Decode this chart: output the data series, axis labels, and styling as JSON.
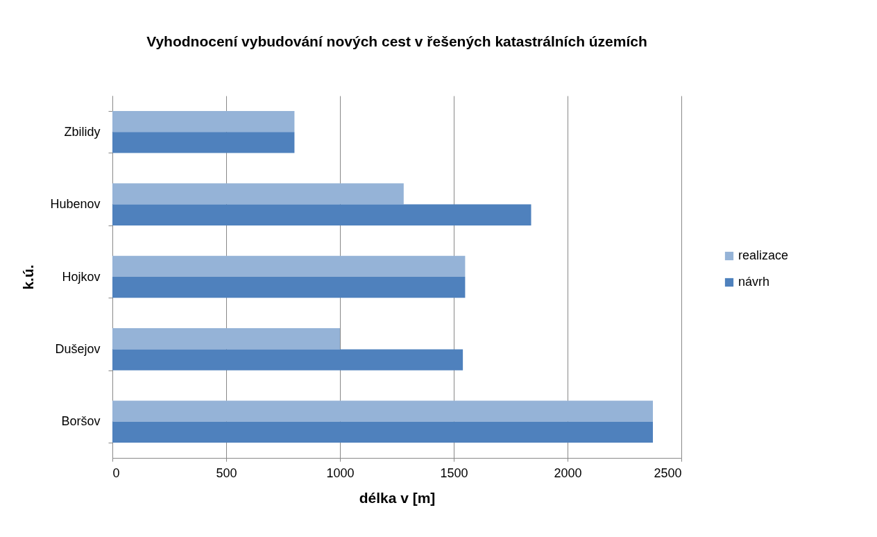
{
  "chart_data": {
    "type": "bar",
    "orientation": "horizontal",
    "title": "Vyhodnocení vybudování nových cest  v řešených katastrálních územích",
    "xlabel": "délka v [m]",
    "ylabel": "k.ú.",
    "categories": [
      "Zbilidy",
      "Hubenov",
      "Hojkov",
      "Dušejov",
      "Boršov"
    ],
    "series": [
      {
        "name": "realizace",
        "color": "#95b3d7",
        "values": [
          800,
          1280,
          1550,
          1000,
          2375
        ]
      },
      {
        "name": "návrh",
        "color": "#4f81bd",
        "values": [
          800,
          1840,
          1550,
          1540,
          2375
        ]
      }
    ],
    "xlim": [
      0,
      2500
    ],
    "xticks": [
      0,
      500,
      1000,
      1500,
      2000,
      2500
    ],
    "grid": "x",
    "legend": "right"
  }
}
